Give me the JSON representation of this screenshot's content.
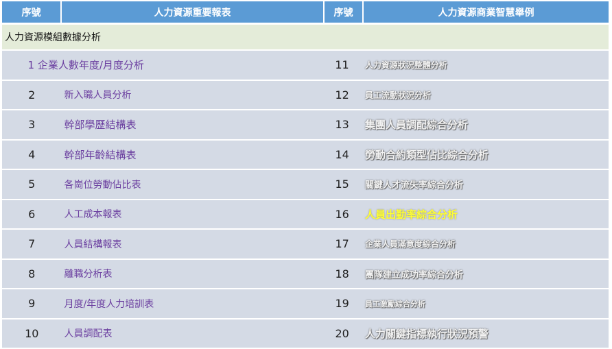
{
  "header": {
    "col1": "序號",
    "col2": "人力資源重要報表",
    "col3": "序號",
    "col4": "人力資源商業智慧舉例"
  },
  "section_title": "人力資源模組數據分析",
  "rows": [
    {
      "no_left": "",
      "report": "1 企業人數年度/月度分析",
      "no_right": "11",
      "bi": "人力資源狀況整體分析"
    },
    {
      "no_left": "2",
      "report": "新入職人員分析",
      "no_right": "12",
      "bi": "員工流動狀況分析"
    },
    {
      "no_left": "3",
      "report": "幹部學歷結構表",
      "no_right": "13",
      "bi": "集團人員調配綜合分析"
    },
    {
      "no_left": "4",
      "report": "幹部年齡結構表",
      "no_right": "14",
      "bi": "勞動合約類型佔比綜合分析"
    },
    {
      "no_left": "5",
      "report": "各崗位勞動佔比表",
      "no_right": "15",
      "bi": "關鍵人才流失率綜合分析"
    },
    {
      "no_left": "6",
      "report": "人工成本報表",
      "no_right": "16",
      "bi": "人員出勤率綜合分析"
    },
    {
      "no_left": "7",
      "report": "人員結構報表",
      "no_right": "17",
      "bi": "企業人員滿意度綜合分析"
    },
    {
      "no_left": "8",
      "report": "離職分析表",
      "no_right": "18",
      "bi": "團隊建立成功率綜合分析"
    },
    {
      "no_left": "9",
      "report": "月度/年度人力培訓表",
      "no_right": "19",
      "bi": "員工激勵綜合分析"
    },
    {
      "no_left": "10",
      "report": "人員調配表",
      "no_right": "20",
      "bi": "人力關鍵指標執行狀況預警"
    }
  ],
  "colors": {
    "header_bg": "#5b9bd5",
    "section_bg": "#e4ecd9",
    "row_bg": "#d4dae5",
    "report_text": "#6b3fa0",
    "highlight": "#ffff33"
  }
}
